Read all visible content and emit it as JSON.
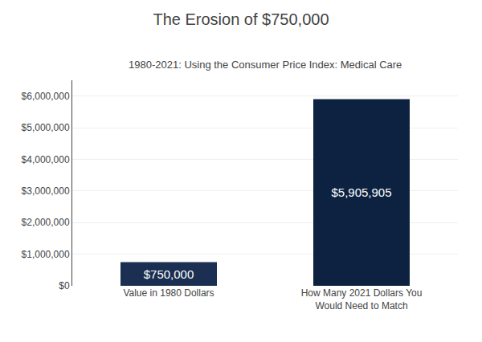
{
  "chart_data": {
    "type": "bar",
    "title": "The Erosion of $750,000",
    "subtitle": "1980-2021: Using the Consumer Price Index: Medical Care",
    "categories": [
      "Value in 1980 Dollars",
      "How Many 2021 Dollars You\nWould Need to Match"
    ],
    "values": [
      750000,
      5905905
    ],
    "value_labels": [
      "$750,000",
      "$5,905,905"
    ],
    "data_labels": true,
    "colors": [
      "#1a2f52",
      "#0d2240"
    ],
    "ylim": [
      0,
      6500000
    ],
    "yticks": [
      {
        "value": 0,
        "label": "$0"
      },
      {
        "value": 1000000,
        "label": "$1,000,000"
      },
      {
        "value": 2000000,
        "label": "$2,000,000"
      },
      {
        "value": 3000000,
        "label": "$3,000,000"
      },
      {
        "value": 4000000,
        "label": "$4,000,000"
      },
      {
        "value": 5000000,
        "label": "$5,000,000"
      },
      {
        "value": 6000000,
        "label": "$6,000,000"
      }
    ],
    "grid": true
  }
}
